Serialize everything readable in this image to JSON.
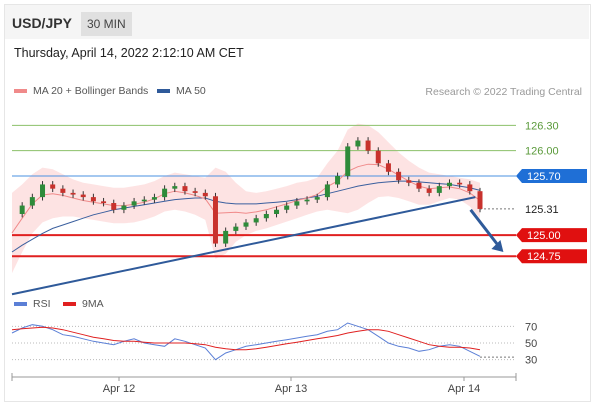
{
  "header": {
    "symbol": "USD/JPY",
    "timeframe": "30 MIN"
  },
  "timestamp": "Thursday, April 14, 2022 2:12:10 AM CET",
  "legend": {
    "ma_bb": {
      "label": "MA 20 + Bollinger Bands",
      "color": "#f08a8a"
    },
    "ma50": {
      "label": "MA 50",
      "color": "#2f5a9a"
    },
    "credit": "Research © 2022 Trading Central"
  },
  "rsi_legend": {
    "rsi": {
      "label": "RSI",
      "color": "#5b7fd6"
    },
    "ma9": {
      "label": "9MA",
      "color": "#e02020"
    }
  },
  "chart_data": [
    {
      "type": "line",
      "x_ticks": [
        "Apr 12",
        "Apr 13",
        "Apr 14"
      ],
      "ylim": [
        124.35,
        126.6
      ],
      "levels": [
        {
          "value": 126.3,
          "label": "126.30",
          "kind": "resistance",
          "color": "#8cc06a"
        },
        {
          "value": 126.0,
          "label": "126.00",
          "kind": "resistance",
          "color": "#8cc06a"
        },
        {
          "value": 125.7,
          "label": "125.70",
          "kind": "pivot",
          "color": "#4a90e2"
        },
        {
          "value": 125.31,
          "label": "125.31",
          "kind": "last",
          "color": "#444444"
        },
        {
          "value": 125.0,
          "label": "125.00",
          "kind": "support",
          "color": "#e02020"
        },
        {
          "value": 124.75,
          "label": "124.75",
          "kind": "support",
          "color": "#e02020"
        }
      ],
      "trendline": {
        "from": [
          0.0,
          124.3
        ],
        "to": [
          0.99,
          125.45
        ],
        "color": "#2f5a9a"
      },
      "forecast_arrow": {
        "from": [
          0.98,
          125.3
        ],
        "to": [
          1.05,
          124.8
        ],
        "color": "#2f5a9a"
      },
      "price": [
        125.25,
        125.35,
        125.45,
        125.6,
        125.55,
        125.5,
        125.48,
        125.45,
        125.4,
        125.38,
        125.3,
        125.35,
        125.4,
        125.42,
        125.45,
        125.55,
        125.58,
        125.52,
        125.5,
        125.46,
        124.9,
        125.05,
        125.1,
        125.15,
        125.2,
        125.25,
        125.3,
        125.35,
        125.4,
        125.42,
        125.45,
        125.6,
        125.7,
        126.05,
        126.12,
        126.0,
        125.85,
        125.75,
        125.65,
        125.62,
        125.55,
        125.5,
        125.58,
        125.62,
        125.6,
        125.52,
        125.31
      ],
      "ma50": [
        124.8,
        124.88,
        124.95,
        125.02,
        125.08,
        125.12,
        125.16,
        125.2,
        125.24,
        125.27,
        125.3,
        125.32,
        125.34,
        125.36,
        125.38,
        125.4,
        125.42,
        125.43,
        125.44,
        125.44,
        125.4,
        125.38,
        125.37,
        125.37,
        125.37,
        125.38,
        125.39,
        125.4,
        125.42,
        125.44,
        125.46,
        125.49,
        125.52,
        125.55,
        125.58,
        125.6,
        125.62,
        125.63,
        125.64,
        125.64,
        125.63,
        125.62,
        125.61,
        125.6,
        125.58,
        125.56,
        125.53
      ],
      "bb_upper": [
        125.5,
        125.6,
        125.72,
        125.8,
        125.78,
        125.72,
        125.66,
        125.62,
        125.6,
        125.58,
        125.56,
        125.56,
        125.58,
        125.6,
        125.64,
        125.7,
        125.74,
        125.72,
        125.7,
        125.68,
        125.8,
        125.75,
        125.62,
        125.52,
        125.5,
        125.52,
        125.55,
        125.58,
        125.62,
        125.64,
        125.68,
        125.85,
        126.0,
        126.25,
        126.32,
        126.3,
        126.22,
        126.1,
        125.98,
        125.88,
        125.8,
        125.74,
        125.72,
        125.7,
        125.68,
        125.66,
        125.62
      ],
      "bb_lower": [
        124.55,
        124.8,
        125.02,
        125.15,
        125.2,
        125.22,
        125.22,
        125.2,
        125.18,
        125.16,
        125.14,
        125.14,
        125.15,
        125.18,
        125.22,
        125.28,
        125.3,
        125.28,
        125.24,
        125.18,
        124.72,
        124.78,
        124.92,
        125.0,
        125.05,
        125.08,
        125.12,
        125.16,
        125.2,
        125.24,
        125.28,
        125.3,
        125.28,
        125.26,
        125.3,
        125.38,
        125.45,
        125.46,
        125.44,
        125.4,
        125.36,
        125.36,
        125.4,
        125.44,
        125.42,
        125.34,
        125.2
      ]
    },
    {
      "type": "line",
      "title": "RSI",
      "y_ticks": [
        "70",
        "50",
        "30"
      ],
      "ylim": [
        20,
        80
      ],
      "levels": [
        70,
        50,
        30
      ],
      "rsi": [
        62,
        68,
        72,
        70,
        66,
        60,
        58,
        55,
        52,
        50,
        48,
        52,
        55,
        50,
        48,
        46,
        55,
        52,
        48,
        44,
        30,
        38,
        42,
        46,
        48,
        50,
        52,
        54,
        56,
        58,
        60,
        64,
        66,
        74,
        70,
        66,
        58,
        50,
        46,
        44,
        40,
        42,
        46,
        48,
        46,
        40,
        34
      ],
      "ma9": [
        66,
        67,
        68,
        69,
        68,
        66,
        63,
        60,
        57,
        55,
        53,
        52,
        52,
        51,
        50,
        50,
        50,
        50,
        49,
        48,
        45,
        43,
        42,
        42,
        43,
        45,
        47,
        49,
        51,
        53,
        55,
        57,
        59,
        62,
        64,
        66,
        66,
        64,
        60,
        56,
        52,
        48,
        46,
        45,
        45,
        44,
        42
      ]
    }
  ]
}
